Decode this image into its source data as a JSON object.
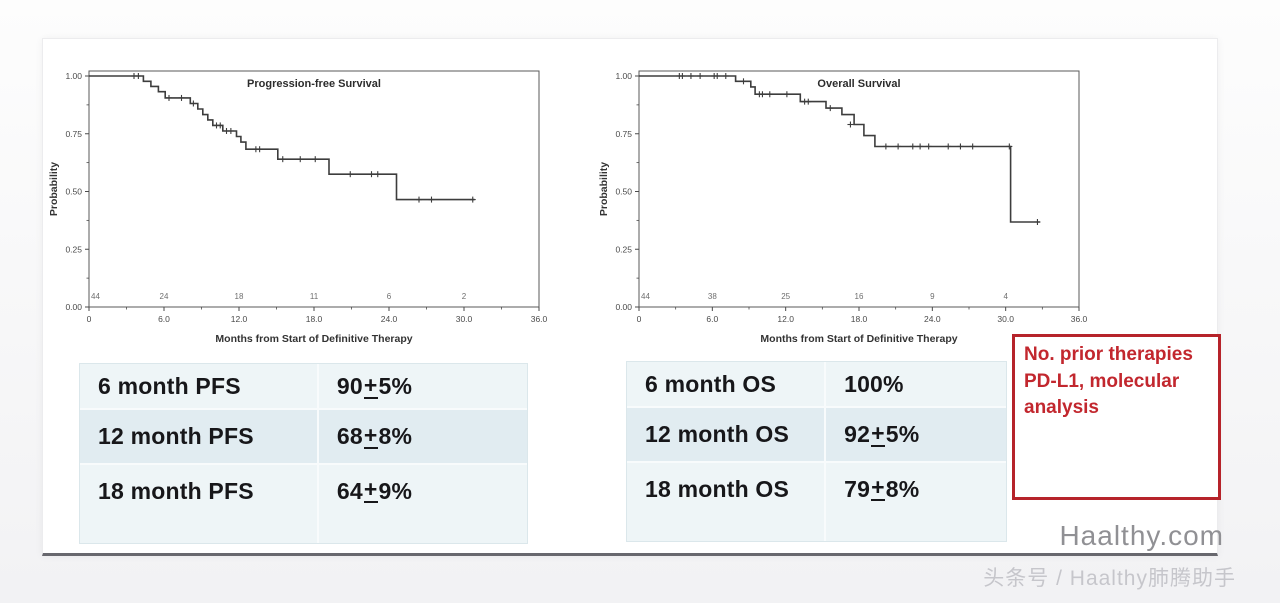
{
  "page": {
    "watermark_site": "Haalthy.com",
    "watermark_byline": "头条号 / Haalthy肺腾助手"
  },
  "note_box": {
    "lines": [
      "No. prior therapies",
      "PD-L1, molecular",
      "analysis"
    ],
    "border_color": "#b6232a",
    "text_color": "#c2272e"
  },
  "tables": {
    "pfs": {
      "rows": [
        {
          "label": "6 month PFS",
          "main": "90",
          "pm": "+",
          "err": "5%"
        },
        {
          "label": "12 month PFS",
          "main": "68",
          "pm": "+",
          "err": "8%"
        },
        {
          "label": "18 month PFS",
          "main": "64",
          "pm": "+",
          "err": "9%"
        }
      ]
    },
    "os": {
      "rows": [
        {
          "label": "6 month OS",
          "main": "100%",
          "pm": "",
          "err": ""
        },
        {
          "label": "12 month OS",
          "main": "92",
          "pm": "+",
          "err": "5%"
        },
        {
          "label": "18 month OS",
          "main": "79",
          "pm": "+",
          "err": "8%"
        }
      ]
    }
  },
  "chart_data": [
    {
      "type": "line",
      "subtype": "kaplan-meier-step",
      "title": "Progression-free Survival",
      "xlabel": "Months from Start of Definitive Therapy",
      "ylabel": "Probability",
      "xlim": [
        0,
        36
      ],
      "ylim": [
        0,
        1
      ],
      "xticks": {
        "values": [
          0,
          6,
          12,
          18,
          24,
          30,
          36
        ],
        "labels": [
          "0",
          "6.0",
          "12.0",
          "18.0",
          "24.0",
          "30.0",
          "36.0"
        ]
      },
      "yticks": {
        "values": [
          0,
          0.25,
          0.5,
          0.75,
          1
        ],
        "labels": [
          "0.00",
          "0.25",
          "0.50",
          "0.75",
          "1.00"
        ]
      },
      "minor_x_step": 3,
      "grid": false,
      "line_color": "#3d3d3d",
      "at_risk": {
        "x": [
          0,
          6,
          12,
          18,
          24,
          30
        ],
        "n": [
          44,
          24,
          18,
          11,
          6,
          2
        ]
      },
      "series": [
        {
          "name": "PFS",
          "step_points": [
            [
              0,
              1
            ],
            [
              4.35,
              1
            ],
            [
              4.35,
              0.977
            ],
            [
              4.95,
              0.977
            ],
            [
              4.95,
              0.955
            ],
            [
              5.55,
              0.955
            ],
            [
              5.55,
              0.932
            ],
            [
              6.1,
              0.932
            ],
            [
              6.1,
              0.905
            ],
            [
              8.1,
              0.905
            ],
            [
              8.1,
              0.881
            ],
            [
              8.7,
              0.881
            ],
            [
              8.7,
              0.857
            ],
            [
              9.1,
              0.857
            ],
            [
              9.1,
              0.833
            ],
            [
              9.5,
              0.833
            ],
            [
              9.5,
              0.81
            ],
            [
              9.9,
              0.81
            ],
            [
              9.9,
              0.786
            ],
            [
              10.7,
              0.786
            ],
            [
              10.7,
              0.762
            ],
            [
              11.8,
              0.762
            ],
            [
              11.8,
              0.738
            ],
            [
              12.15,
              0.738
            ],
            [
              12.15,
              0.714
            ],
            [
              12.55,
              0.714
            ],
            [
              12.55,
              0.683
            ],
            [
              15.1,
              0.683
            ],
            [
              15.1,
              0.64
            ],
            [
              19.2,
              0.64
            ],
            [
              19.2,
              0.575
            ],
            [
              24.6,
              0.575
            ],
            [
              24.6,
              0.465
            ],
            [
              30.85,
              0.465
            ]
          ],
          "censors": [
            [
              3.6,
              1
            ],
            [
              3.95,
              1
            ],
            [
              6.4,
              0.905
            ],
            [
              7.4,
              0.905
            ],
            [
              8.35,
              0.881
            ],
            [
              10.2,
              0.786
            ],
            [
              10.5,
              0.786
            ],
            [
              11.0,
              0.762
            ],
            [
              11.35,
              0.762
            ],
            [
              13.35,
              0.683
            ],
            [
              13.65,
              0.683
            ],
            [
              15.5,
              0.64
            ],
            [
              16.9,
              0.64
            ],
            [
              18.1,
              0.64
            ],
            [
              20.9,
              0.575
            ],
            [
              22.6,
              0.575
            ],
            [
              23.1,
              0.575
            ],
            [
              26.4,
              0.465
            ],
            [
              27.4,
              0.465
            ],
            [
              30.7,
              0.465
            ]
          ]
        }
      ]
    },
    {
      "type": "line",
      "subtype": "kaplan-meier-step",
      "title": "Overall Survival",
      "xlabel": "Months from Start of Definitive Therapy",
      "ylabel": "Probability",
      "xlim": [
        0,
        36
      ],
      "ylim": [
        0,
        1
      ],
      "xticks": {
        "values": [
          0,
          6,
          12,
          18,
          24,
          30,
          36
        ],
        "labels": [
          "0",
          "6.0",
          "12.0",
          "18.0",
          "24.0",
          "30.0",
          "36.0"
        ]
      },
      "yticks": {
        "values": [
          0,
          0.25,
          0.5,
          0.75,
          1
        ],
        "labels": [
          "0.00",
          "0.25",
          "0.50",
          "0.75",
          "1.00"
        ]
      },
      "minor_x_step": 3,
      "grid": false,
      "line_color": "#3d3d3d",
      "at_risk": {
        "x": [
          0,
          6,
          12,
          18,
          24,
          30
        ],
        "n": [
          44,
          38,
          25,
          16,
          9,
          4
        ]
      },
      "series": [
        {
          "name": "OS",
          "step_points": [
            [
              0,
              1
            ],
            [
              7.9,
              1
            ],
            [
              7.9,
              0.977
            ],
            [
              9.15,
              0.977
            ],
            [
              9.15,
              0.953
            ],
            [
              9.5,
              0.953
            ],
            [
              9.5,
              0.921
            ],
            [
              13.2,
              0.921
            ],
            [
              13.2,
              0.889
            ],
            [
              15.3,
              0.889
            ],
            [
              15.3,
              0.861
            ],
            [
              16.6,
              0.861
            ],
            [
              16.6,
              0.833
            ],
            [
              17.6,
              0.833
            ],
            [
              17.6,
              0.79
            ],
            [
              18.4,
              0.79
            ],
            [
              18.4,
              0.742
            ],
            [
              19.3,
              0.742
            ],
            [
              19.3,
              0.695
            ],
            [
              30.4,
              0.695
            ],
            [
              30.4,
              0.368
            ],
            [
              32.8,
              0.368
            ]
          ],
          "censors": [
            [
              3.3,
              1
            ],
            [
              3.55,
              1
            ],
            [
              4.25,
              1
            ],
            [
              5.0,
              1
            ],
            [
              6.15,
              1
            ],
            [
              6.4,
              1
            ],
            [
              7.1,
              1
            ],
            [
              8.55,
              0.977
            ],
            [
              9.85,
              0.921
            ],
            [
              10.1,
              0.921
            ],
            [
              10.7,
              0.921
            ],
            [
              12.1,
              0.921
            ],
            [
              13.55,
              0.889
            ],
            [
              13.85,
              0.889
            ],
            [
              15.65,
              0.861
            ],
            [
              17.3,
              0.79
            ],
            [
              20.2,
              0.695
            ],
            [
              21.2,
              0.695
            ],
            [
              22.4,
              0.695
            ],
            [
              23.0,
              0.695
            ],
            [
              23.7,
              0.695
            ],
            [
              25.3,
              0.695
            ],
            [
              26.3,
              0.695
            ],
            [
              27.3,
              0.695
            ],
            [
              30.3,
              0.695
            ],
            [
              32.6,
              0.368
            ]
          ]
        }
      ]
    }
  ]
}
